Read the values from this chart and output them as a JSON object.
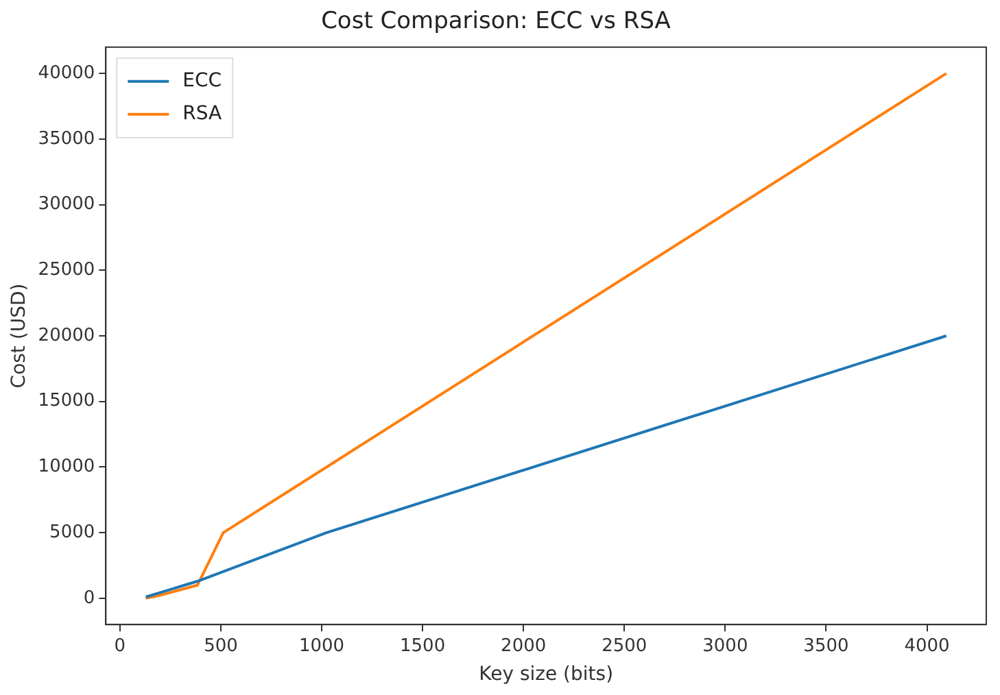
{
  "chart_data": {
    "type": "line",
    "title": "Cost Comparison: ECC vs RSA",
    "xlabel": "Key size (bits)",
    "ylabel": "Cost (USD)",
    "series": [
      {
        "name": "ECC",
        "color": "#1f77b4",
        "x": [
          128,
          384,
          1024,
          4096
        ],
        "values": [
          100,
          1300,
          5000,
          20000
        ]
      },
      {
        "name": "RSA",
        "color": "#ff7f0e",
        "x": [
          128,
          192,
          384,
          512,
          1024,
          4096
        ],
        "values": [
          0,
          200,
          1000,
          5000,
          10000,
          40000
        ]
      }
    ],
    "xlim": [
      -70,
      4294
    ],
    "ylim": [
      -2000,
      42000
    ],
    "xticks": [
      0,
      500,
      1000,
      1500,
      2000,
      2500,
      3000,
      3500,
      4000
    ],
    "yticks": [
      0,
      5000,
      10000,
      15000,
      20000,
      25000,
      30000,
      35000,
      40000
    ],
    "grid": false,
    "legend": "top left",
    "marker": "none",
    "line_style": "solid"
  }
}
